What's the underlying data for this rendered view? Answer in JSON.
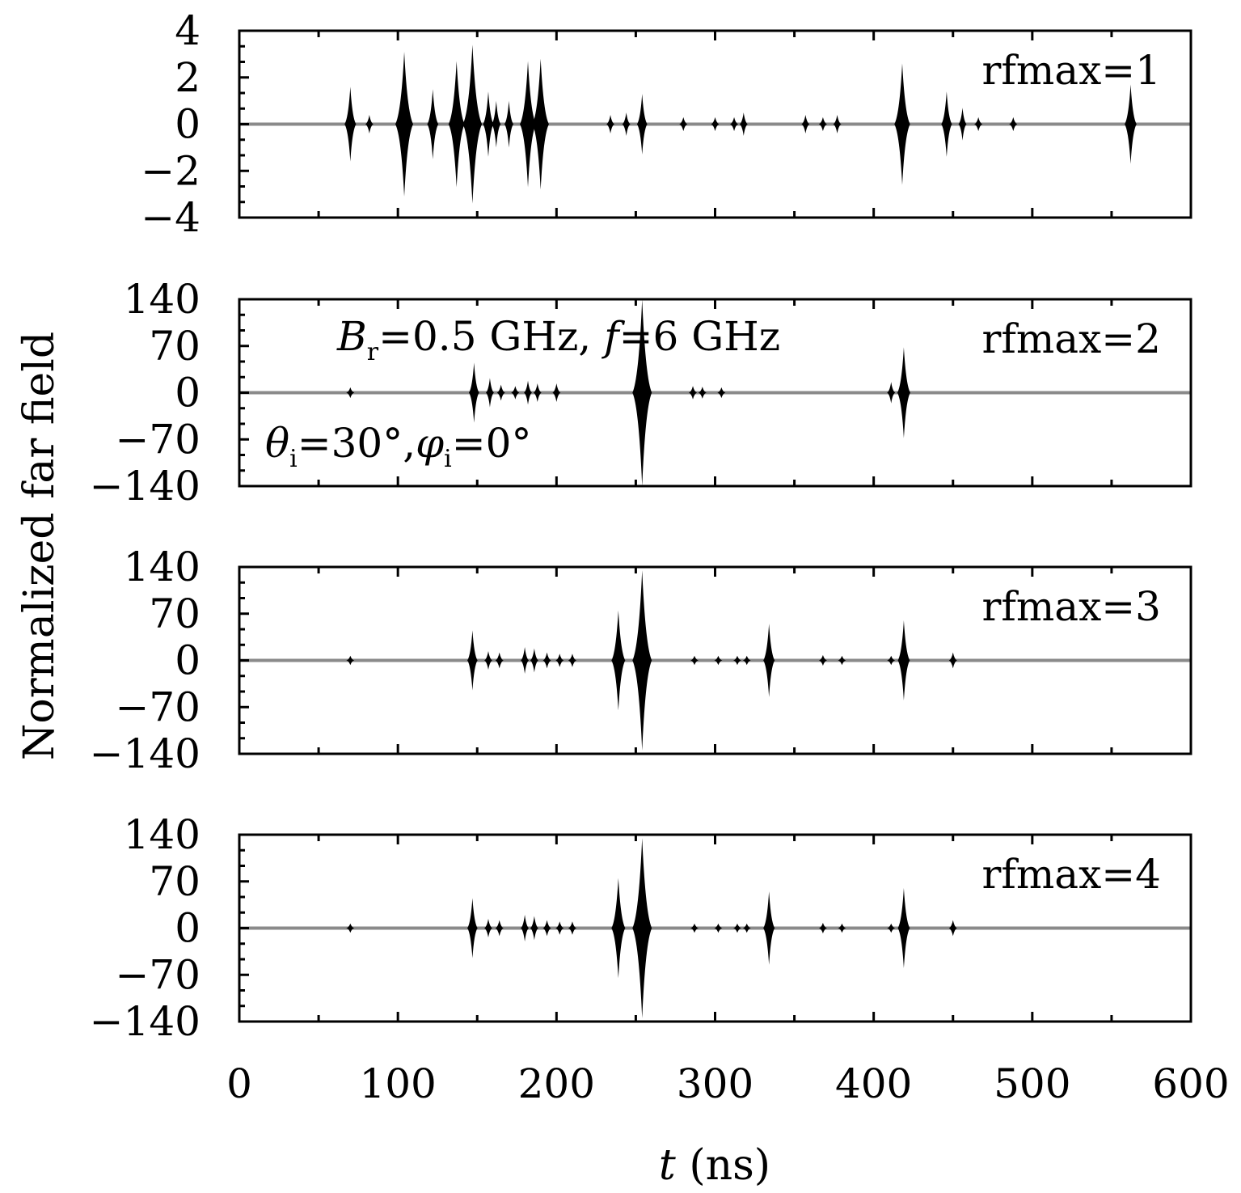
{
  "chart_data": [
    {
      "type": "line",
      "panel_label": "rfmax=1",
      "xlim": [
        0,
        600
      ],
      "ylim": [
        -4,
        4
      ],
      "yticks": [
        4,
        2,
        0,
        -2,
        -4
      ],
      "ytick_labels": [
        "4",
        "2",
        "0",
        "−2",
        "−4"
      ],
      "pulses": [
        {
          "t": 70,
          "amp": 1.6
        },
        {
          "t": 82,
          "amp": 0.4
        },
        {
          "t": 104,
          "amp": 3.1
        },
        {
          "t": 122,
          "amp": 1.5
        },
        {
          "t": 137,
          "amp": 2.7
        },
        {
          "t": 147,
          "amp": 3.4
        },
        {
          "t": 157,
          "amp": 1.4
        },
        {
          "t": 162,
          "amp": 1.0
        },
        {
          "t": 170,
          "amp": 1.0
        },
        {
          "t": 182,
          "amp": 2.7
        },
        {
          "t": 190,
          "amp": 2.8
        },
        {
          "t": 234,
          "amp": 0.4
        },
        {
          "t": 244,
          "amp": 0.5
        },
        {
          "t": 254,
          "amp": 1.3
        },
        {
          "t": 280,
          "amp": 0.3
        },
        {
          "t": 300,
          "amp": 0.3
        },
        {
          "t": 312,
          "amp": 0.3
        },
        {
          "t": 318,
          "amp": 0.5
        },
        {
          "t": 357,
          "amp": 0.4
        },
        {
          "t": 368,
          "amp": 0.3
        },
        {
          "t": 377,
          "amp": 0.4
        },
        {
          "t": 418,
          "amp": 2.6
        },
        {
          "t": 446,
          "amp": 1.4
        },
        {
          "t": 456,
          "amp": 0.7
        },
        {
          "t": 466,
          "amp": 0.3
        },
        {
          "t": 488,
          "amp": 0.3
        },
        {
          "t": 562,
          "amp": 1.7
        }
      ]
    },
    {
      "type": "line",
      "panel_label": "rfmax=2",
      "xlim": [
        0,
        600
      ],
      "ylim": [
        -140,
        140
      ],
      "yticks": [
        140,
        70,
        0,
        -70,
        -140
      ],
      "ytick_labels": [
        "140",
        "70",
        "0",
        "−70",
        "−140"
      ],
      "annotations": {
        "bandwidth": "B",
        "bandwidth_sub": "r",
        "bandwidth_rest": "=0.5 GHz, ",
        "freq": "f",
        "freq_rest": "=6 GHz",
        "theta": "θ",
        "theta_sub": "i",
        "theta_rest": "=30°,",
        "phi": "φ",
        "phi_sub": "i",
        "phi_rest": "=0°"
      },
      "pulses": [
        {
          "t": 70,
          "amp": 8
        },
        {
          "t": 148,
          "amp": 45
        },
        {
          "t": 158,
          "amp": 22
        },
        {
          "t": 165,
          "amp": 12
        },
        {
          "t": 174,
          "amp": 10
        },
        {
          "t": 182,
          "amp": 18
        },
        {
          "t": 188,
          "amp": 14
        },
        {
          "t": 200,
          "amp": 14
        },
        {
          "t": 254,
          "amp": 140
        },
        {
          "t": 286,
          "amp": 10
        },
        {
          "t": 292,
          "amp": 9
        },
        {
          "t": 304,
          "amp": 8
        },
        {
          "t": 411,
          "amp": 16
        },
        {
          "t": 419,
          "amp": 68
        }
      ]
    },
    {
      "type": "line",
      "panel_label": "rfmax=3",
      "xlim": [
        0,
        600
      ],
      "ylim": [
        -140,
        140
      ],
      "yticks": [
        140,
        70,
        0,
        -70,
        -140
      ],
      "ytick_labels": [
        "140",
        "70",
        "0",
        "−70",
        "−140"
      ],
      "pulses": [
        {
          "t": 70,
          "amp": 7
        },
        {
          "t": 147,
          "amp": 45
        },
        {
          "t": 157,
          "amp": 14
        },
        {
          "t": 164,
          "amp": 12
        },
        {
          "t": 180,
          "amp": 20
        },
        {
          "t": 186,
          "amp": 18
        },
        {
          "t": 194,
          "amp": 12
        },
        {
          "t": 202,
          "amp": 10
        },
        {
          "t": 210,
          "amp": 10
        },
        {
          "t": 239,
          "amp": 75
        },
        {
          "t": 254,
          "amp": 135
        },
        {
          "t": 287,
          "amp": 7
        },
        {
          "t": 302,
          "amp": 7
        },
        {
          "t": 314,
          "amp": 7
        },
        {
          "t": 320,
          "amp": 7
        },
        {
          "t": 334,
          "amp": 55
        },
        {
          "t": 368,
          "amp": 8
        },
        {
          "t": 380,
          "amp": 7
        },
        {
          "t": 411,
          "amp": 7
        },
        {
          "t": 419,
          "amp": 60
        },
        {
          "t": 450,
          "amp": 12
        }
      ]
    },
    {
      "type": "line",
      "panel_label": "rfmax=4",
      "xlim": [
        0,
        600
      ],
      "ylim": [
        -140,
        140
      ],
      "yticks": [
        140,
        70,
        0,
        -70,
        -140
      ],
      "ytick_labels": [
        "140",
        "70",
        "0",
        "−70",
        "−140"
      ],
      "xticks": [
        0,
        100,
        200,
        300,
        400,
        500,
        600
      ],
      "xtick_labels": [
        "0",
        "100",
        "200",
        "300",
        "400",
        "500",
        "600"
      ],
      "pulses": [
        {
          "t": 70,
          "amp": 7
        },
        {
          "t": 147,
          "amp": 45
        },
        {
          "t": 157,
          "amp": 14
        },
        {
          "t": 164,
          "amp": 12
        },
        {
          "t": 180,
          "amp": 20
        },
        {
          "t": 186,
          "amp": 18
        },
        {
          "t": 194,
          "amp": 12
        },
        {
          "t": 202,
          "amp": 10
        },
        {
          "t": 210,
          "amp": 10
        },
        {
          "t": 239,
          "amp": 75
        },
        {
          "t": 254,
          "amp": 135
        },
        {
          "t": 287,
          "amp": 7
        },
        {
          "t": 302,
          "amp": 7
        },
        {
          "t": 314,
          "amp": 7
        },
        {
          "t": 320,
          "amp": 7
        },
        {
          "t": 334,
          "amp": 55
        },
        {
          "t": 368,
          "amp": 8
        },
        {
          "t": 380,
          "amp": 7
        },
        {
          "t": 411,
          "amp": 7
        },
        {
          "t": 419,
          "amp": 60
        },
        {
          "t": 450,
          "amp": 12
        }
      ]
    }
  ],
  "axes": {
    "ylabel": "Normalized far field",
    "xlabel_var": "t",
    "xlabel_unit": " (ns)"
  }
}
